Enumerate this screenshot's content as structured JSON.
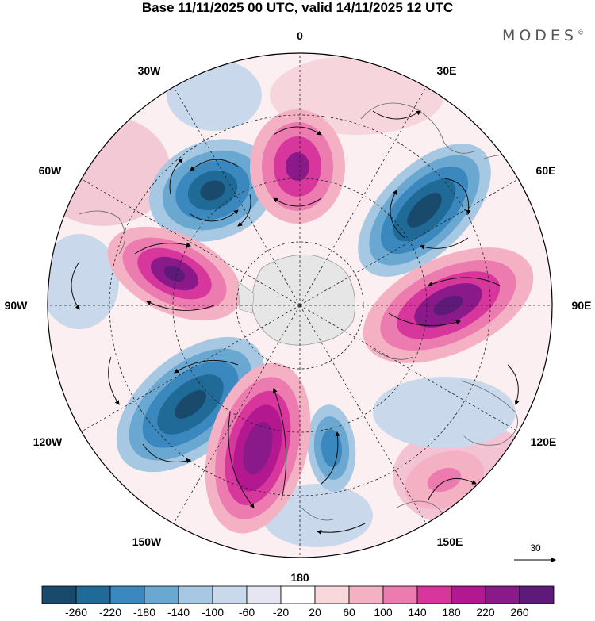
{
  "header": {
    "title": "Base 11/11/2025 00 UTC, valid 14/11/2025 12 UTC",
    "brand": "MODES",
    "brand_mark": "©"
  },
  "map": {
    "projection": "south-polar-stereographic",
    "longitude_labels": {
      "lon_0": "0",
      "lon_30e": "30E",
      "lon_60e": "60E",
      "lon_90e": "90E",
      "lon_120e": "120E",
      "lon_150e": "150E",
      "lon_180": "180",
      "lon_150w": "150W",
      "lon_120w": "120W",
      "lon_90w": "90W",
      "lon_60w": "60W",
      "lon_30w": "30W"
    },
    "reference_vector_label": "30"
  },
  "colorbar": {
    "levels": [
      "-260",
      "-220",
      "-180",
      "-140",
      "-100",
      "-60",
      "-20",
      "20",
      "60",
      "100",
      "140",
      "180",
      "220",
      "260"
    ],
    "colors": [
      "#1a4a6b",
      "#1f6a96",
      "#3a88bd",
      "#6aa8d2",
      "#a7c8e2",
      "#c9d8ea",
      "#e6e6f2",
      "#ffffff",
      "#f9d8dc",
      "#f4b1c4",
      "#ec7bb0",
      "#d7369c",
      "#b41890",
      "#8a1a8a",
      "#5e1a79"
    ]
  }
}
